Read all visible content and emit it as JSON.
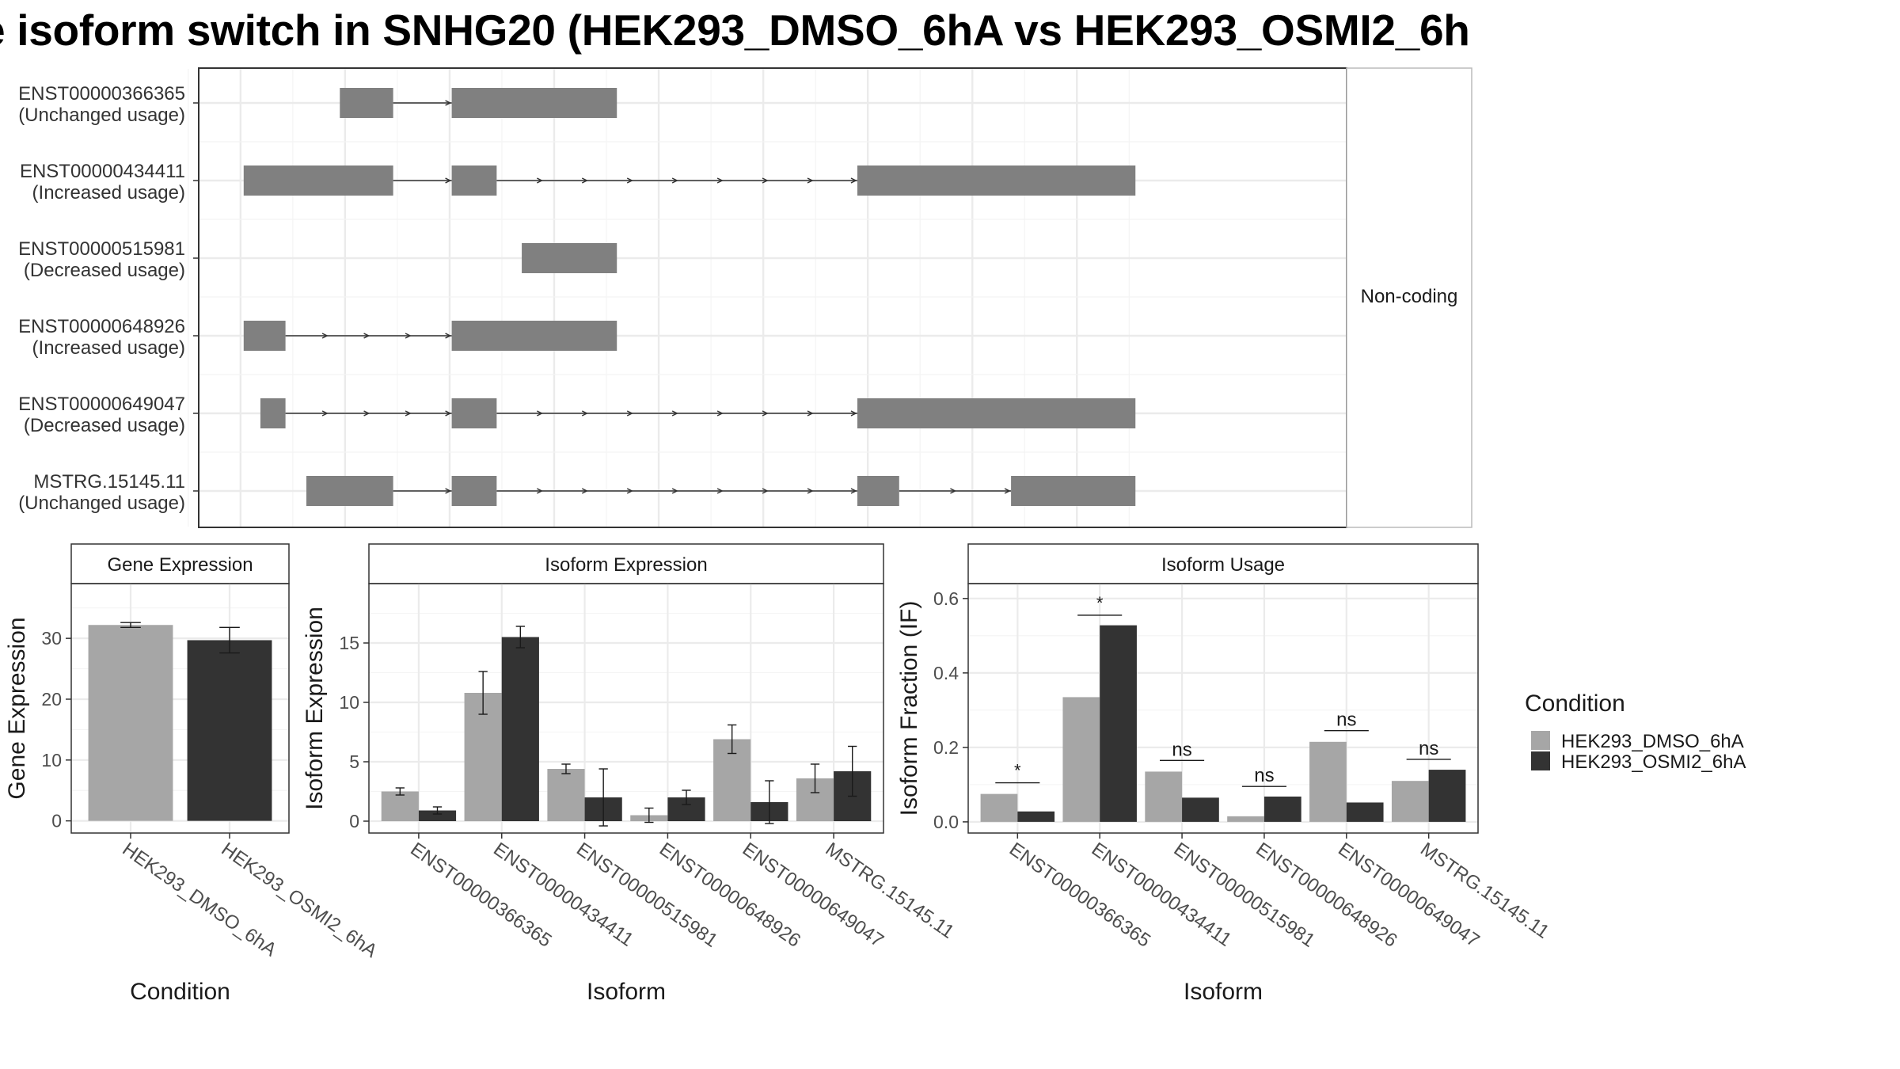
{
  "title": "e isoform switch in SNHG20 (HEK293_DMSO_6hA vs HEK293_OSMI2_6h",
  "chart_data": [
    {
      "type": "gene-structure",
      "facet_label": "Non-coding",
      "transcripts": [
        {
          "name": "ENST00000366365",
          "usage": "(Unchanged usage)",
          "exons": [
            [
              295,
              346
            ],
            [
              402,
              560
            ]
          ]
        },
        {
          "name": "ENST00000434411",
          "usage": "(Increased usage)",
          "exons": [
            [
              203,
              346
            ],
            [
              402,
              445
            ],
            [
              790,
              1056
            ]
          ]
        },
        {
          "name": "ENST00000515981",
          "usage": "(Decreased usage)",
          "exons": [
            [
              469,
              560
            ]
          ]
        },
        {
          "name": "ENST00000648926",
          "usage": "(Increased usage)",
          "exons": [
            [
              203,
              243
            ],
            [
              402,
              560
            ]
          ]
        },
        {
          "name": "ENST00000649047",
          "usage": "(Decreased usage)",
          "exons": [
            [
              219,
              243
            ],
            [
              402,
              445
            ],
            [
              790,
              1056
            ]
          ]
        },
        {
          "name": "MSTRG.15145.11",
          "usage": "(Unchanged usage)",
          "exons": [
            [
              263,
              346
            ],
            [
              402,
              445
            ],
            [
              790,
              830
            ],
            [
              937,
              1056
            ]
          ]
        }
      ],
      "colors": {
        "exon": "#808080",
        "intron": "#333333",
        "border": "#333333",
        "grid": "#ebebeb"
      }
    },
    {
      "type": "bar",
      "panel_title": "Gene Expression",
      "xlabel": "Condition",
      "ylabel": "Gene Expression",
      "ylim": [
        -2,
        39
      ],
      "yticks": [
        0,
        10,
        20,
        30
      ],
      "categories": [
        "HEK293_DMSO_6hA",
        "HEK293_OSMI2_6hA"
      ],
      "values": [
        32.2,
        29.7
      ],
      "errors": [
        0.4,
        2.1
      ],
      "colors": [
        "#a6a6a6",
        "#333333"
      ]
    },
    {
      "type": "bar",
      "panel_title": "Isoform Expression",
      "xlabel": "Isoform",
      "ylabel": "Isoform Expression",
      "ylim": [
        -1,
        20
      ],
      "yticks": [
        0,
        5,
        10,
        15
      ],
      "categories": [
        "ENST00000366365",
        "ENST00000434411",
        "ENST00000515981",
        "ENST00000648926",
        "ENST00000649047",
        "MSTRG.15145.11"
      ],
      "series": [
        {
          "name": "HEK293_DMSO_6hA",
          "values": [
            2.5,
            10.8,
            4.4,
            0.5,
            6.9,
            3.6
          ],
          "errors": [
            0.3,
            1.8,
            0.4,
            0.6,
            1.2,
            1.2
          ],
          "color": "#a6a6a6"
        },
        {
          "name": "HEK293_OSMI2_6hA",
          "values": [
            0.9,
            15.5,
            2.0,
            2.0,
            1.6,
            4.2
          ],
          "errors": [
            0.3,
            0.9,
            2.4,
            0.6,
            1.8,
            2.1
          ],
          "color": "#333333"
        }
      ]
    },
    {
      "type": "bar",
      "panel_title": "Isoform Usage",
      "xlabel": "Isoform",
      "ylabel": "Isoform Fraction (IF)",
      "ylim": [
        -0.03,
        0.64
      ],
      "yticks": [
        0.0,
        0.2,
        0.4,
        0.6
      ],
      "categories": [
        "ENST00000366365",
        "ENST00000434411",
        "ENST00000515981",
        "ENST00000648926",
        "ENST00000649047",
        "MSTRG.15145.11"
      ],
      "series": [
        {
          "name": "HEK293_DMSO_6hA",
          "values": [
            0.075,
            0.335,
            0.135,
            0.015,
            0.215,
            0.11
          ],
          "color": "#a6a6a6"
        },
        {
          "name": "HEK293_OSMI2_6hA",
          "values": [
            0.028,
            0.528,
            0.065,
            0.068,
            0.052,
            0.14
          ],
          "color": "#333333"
        }
      ],
      "significance": [
        "*",
        "*",
        "ns",
        "ns",
        "ns",
        "ns"
      ],
      "sig_levels": [
        0.105,
        0.555,
        0.165,
        0.095,
        0.245,
        0.168
      ]
    }
  ],
  "legend": {
    "title": "Condition",
    "items": [
      {
        "label": "HEK293_DMSO_6hA",
        "color": "#a6a6a6"
      },
      {
        "label": "HEK293_OSMI2_6hA",
        "color": "#333333"
      }
    ]
  }
}
